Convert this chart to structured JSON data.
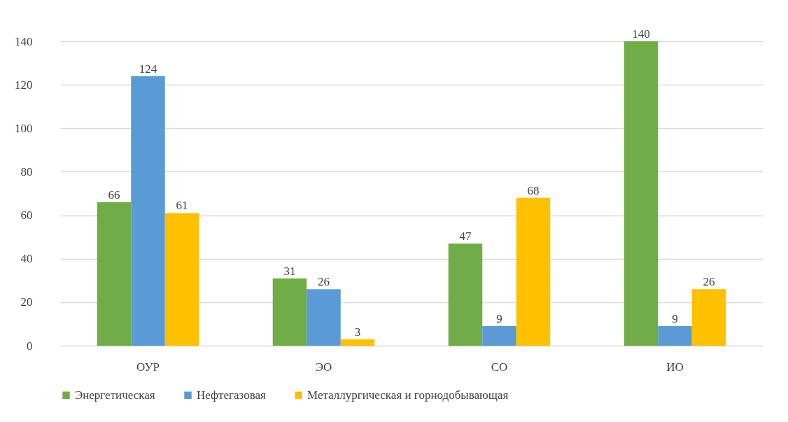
{
  "chart_data": {
    "type": "bar",
    "categories": [
      "ОУР",
      "ЭО",
      "СО",
      "ИО"
    ],
    "series": [
      {
        "name": "Энергетическая",
        "color": "#70ad47",
        "values": [
          66,
          31,
          47,
          140
        ]
      },
      {
        "name": "Нефтегазовая",
        "color": "#5b9bd5",
        "values": [
          124,
          26,
          9,
          9
        ]
      },
      {
        "name": "Металлургическая и горнодобывающая",
        "color": "#ffc000",
        "values": [
          61,
          3,
          68,
          26
        ]
      }
    ],
    "ylim": [
      0,
      140
    ],
    "yticks": [
      0,
      20,
      40,
      60,
      80,
      100,
      120,
      140
    ],
    "grid": "y",
    "legend": "bottom",
    "data_labels": true
  }
}
